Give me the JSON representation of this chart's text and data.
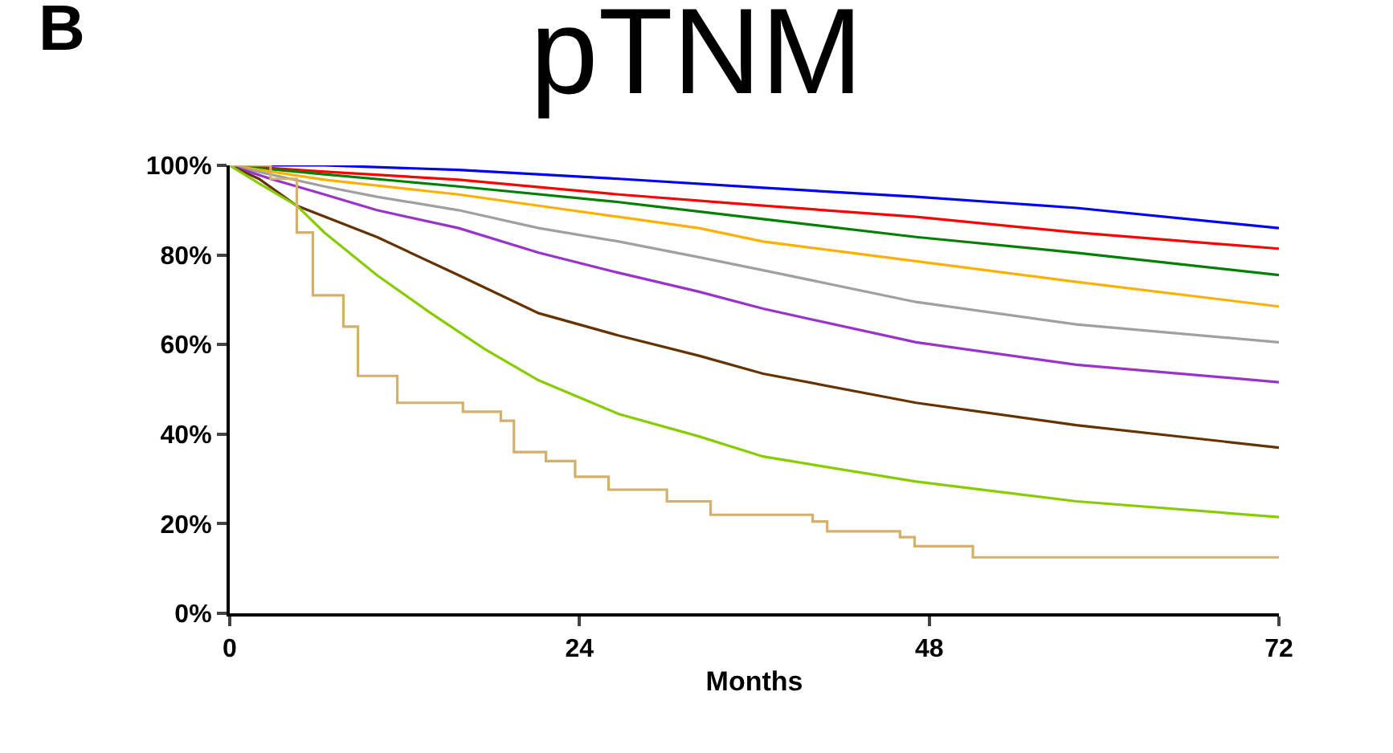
{
  "chart_data": {
    "type": "line",
    "title": "pTNM",
    "xlabel": "Months",
    "annotations": [
      "B"
    ],
    "xlim": [
      0,
      72
    ],
    "xticks": [
      0,
      24,
      48,
      72
    ],
    "ylim": [
      0,
      100
    ],
    "yticks": [
      {
        "value": 0,
        "label": "0%"
      },
      {
        "value": 20,
        "label": "20%"
      },
      {
        "value": 40,
        "label": "40%"
      },
      {
        "value": 60,
        "label": "60%"
      },
      {
        "value": 80,
        "label": "80%"
      },
      {
        "value": 100,
        "label": "100%"
      }
    ],
    "legend": false,
    "marker": "none",
    "line_style": "solid",
    "series": [
      {
        "color": "#0000ff",
        "x": [
          0,
          6.5,
          15.7,
          26.7,
          36.6,
          47.1,
          58.1,
          72
        ],
        "values": [
          100,
          100,
          99,
          97,
          95,
          93,
          90.5,
          86
        ]
      },
      {
        "color": "#ff0000",
        "x": [
          0,
          6.5,
          15.7,
          26.7,
          36.6,
          47.1,
          58.1,
          72
        ],
        "values": [
          100,
          98.6,
          96.8,
          93.5,
          91,
          88.5,
          85,
          81.4
        ]
      },
      {
        "color": "#008000",
        "x": [
          0,
          6.5,
          15.7,
          26.7,
          36.6,
          47.1,
          58.1,
          72
        ],
        "values": [
          100,
          98,
          95.3,
          91.8,
          88,
          84,
          80.5,
          75.5
        ]
      },
      {
        "color": "#ffb000",
        "x": [
          0,
          6.5,
          15.7,
          21.2,
          26.7,
          32.2,
          36.6,
          47.1,
          58.1,
          72
        ],
        "values": [
          100,
          96.8,
          93.5,
          91,
          88.5,
          86,
          83,
          78.6,
          74,
          68.5
        ]
      },
      {
        "color": "#a0a0a0",
        "x": [
          0,
          6.5,
          10.1,
          15.7,
          21.2,
          26.7,
          32.2,
          36.6,
          47.1,
          58.1,
          72
        ],
        "values": [
          100,
          95.3,
          93,
          90,
          86,
          83,
          79.5,
          76.6,
          69.5,
          64.5,
          60.5
        ]
      },
      {
        "color": "#9933cc",
        "x": [
          0,
          2.8,
          6.5,
          10.1,
          15.7,
          21.2,
          26.7,
          32.2,
          36.6,
          47.1,
          58.1,
          72
        ],
        "values": [
          100,
          97,
          93.5,
          90,
          86,
          80.5,
          76,
          71.8,
          68,
          60.5,
          55.5,
          51.6
        ]
      },
      {
        "color": "#663300",
        "x": [
          0,
          2,
          4.6,
          10.1,
          15.7,
          21.2,
          26.7,
          32.2,
          36.6,
          47.1,
          58.1,
          72
        ],
        "values": [
          100,
          97,
          91,
          84,
          75.5,
          67,
          62,
          57.5,
          53.5,
          47,
          42,
          37
        ]
      },
      {
        "color": "#88cc00",
        "x": [
          0,
          2,
          4.6,
          6.5,
          10.1,
          13.8,
          17.5,
          21.2,
          26.7,
          32.2,
          36.6,
          47.1,
          58.1,
          72
        ],
        "values": [
          100,
          96,
          91,
          85,
          75.5,
          67,
          59,
          52,
          44.5,
          39.5,
          35,
          29.4,
          25,
          21.5
        ]
      },
      {
        "type": "step",
        "color": "#d4b06a",
        "x": [
          0,
          2.8,
          4.6,
          5.7,
          7.8,
          8.8,
          11.5,
          16,
          18.6,
          19.5,
          21.7,
          23.7,
          26,
          30,
          33,
          40,
          41,
          46,
          47,
          51,
          72
        ],
        "values": [
          100,
          97,
          85,
          71,
          64,
          53,
          47,
          45,
          43,
          36,
          34,
          30.5,
          27.6,
          25,
          22,
          20.5,
          18.3,
          17,
          15,
          12.5,
          12.5
        ]
      }
    ]
  }
}
